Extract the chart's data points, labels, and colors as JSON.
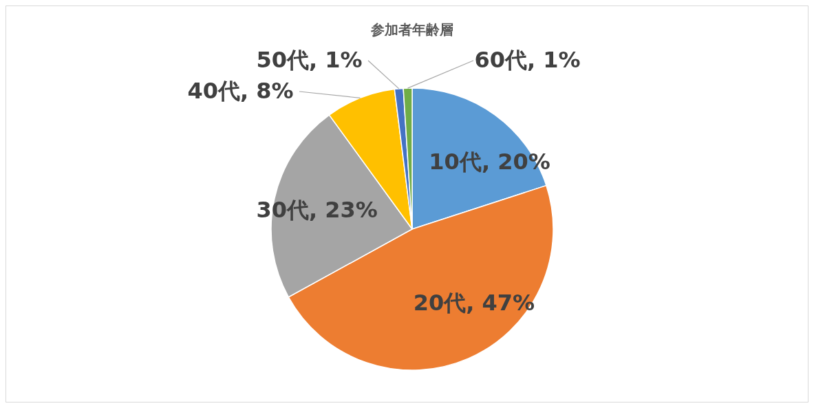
{
  "chart_data": {
    "type": "pie",
    "title": "参加者年齢層",
    "categories": [
      "10代",
      "20代",
      "30代",
      "40代",
      "50代",
      "60代"
    ],
    "values": [
      20,
      47,
      23,
      8,
      1,
      1
    ],
    "colors": [
      "#5b9bd5",
      "#ed7d31",
      "#a5a5a5",
      "#ffc000",
      "#4472c4",
      "#70ad47"
    ],
    "value_labels": [
      ", 20%",
      ", 47%",
      ", 23%",
      ", 8%",
      ", 1%",
      ", 1%"
    ],
    "legend": false
  }
}
